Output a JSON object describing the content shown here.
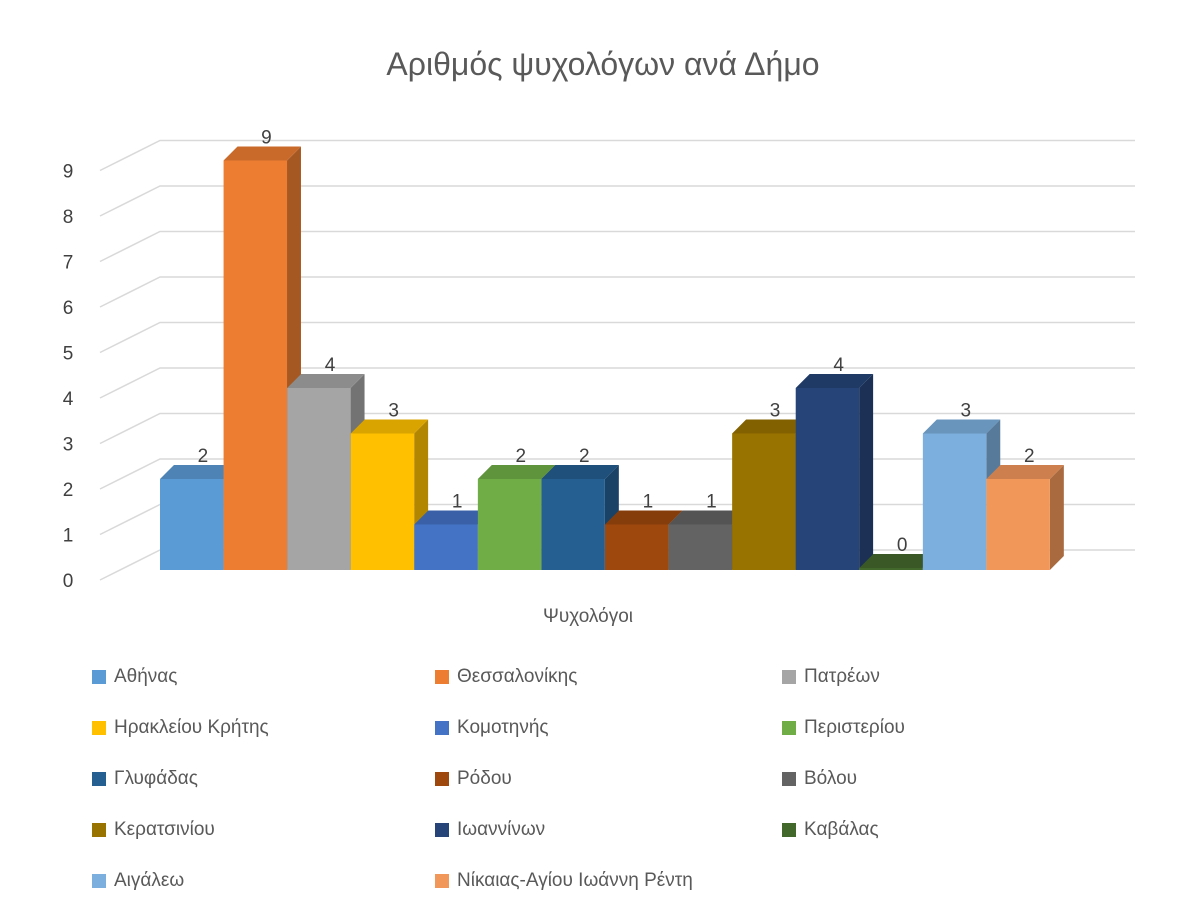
{
  "chart_data": {
    "type": "bar",
    "title": "Αριθμός ψυχολόγων ανά Δήμο",
    "xlabel": "Ψυχολόγοι",
    "ylabel": "",
    "ylim": [
      0,
      9
    ],
    "yticks": [
      "0",
      "1",
      "2",
      "3",
      "4",
      "5",
      "6",
      "7",
      "8",
      "9"
    ],
    "grid": true,
    "legend_position": "bottom",
    "style": "3d-clustered-column",
    "categories": [
      "Ψυχολόγοι"
    ],
    "series": [
      {
        "name": "Αθήνας",
        "values": [
          2
        ],
        "color": "#5B9BD5"
      },
      {
        "name": "Θεσσαλονίκης",
        "values": [
          9
        ],
        "color": "#ED7D31"
      },
      {
        "name": "Πατρέων",
        "values": [
          4
        ],
        "color": "#A5A5A5"
      },
      {
        "name": "Ηρακλείου Κρήτης",
        "values": [
          3
        ],
        "color": "#FFC000"
      },
      {
        "name": "Κομοτηνής",
        "values": [
          1
        ],
        "color": "#4472C4"
      },
      {
        "name": "Περιστερίου",
        "values": [
          2
        ],
        "color": "#70AD47"
      },
      {
        "name": "Γλυφάδας",
        "values": [
          2
        ],
        "color": "#255E91"
      },
      {
        "name": "Ρόδου",
        "values": [
          1
        ],
        "color": "#9E480E"
      },
      {
        "name": "Βόλου",
        "values": [
          1
        ],
        "color": "#636363"
      },
      {
        "name": "Κερατσινίου",
        "values": [
          3
        ],
        "color": "#997300"
      },
      {
        "name": "Ιωαννίνων",
        "values": [
          4
        ],
        "color": "#264478"
      },
      {
        "name": "Καβάλας",
        "values": [
          0
        ],
        "color": "#43682B"
      },
      {
        "name": "Αιγάλεω",
        "values": [
          3
        ],
        "color": "#7CAFDD"
      },
      {
        "name": "Νίκαιας-Αγίου Ιωάννη Ρέντη",
        "values": [
          2
        ],
        "color": "#F1975A"
      }
    ]
  }
}
